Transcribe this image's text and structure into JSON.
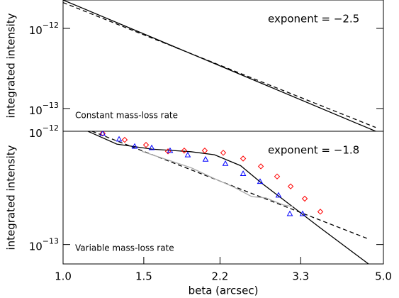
{
  "chart_data": [
    {
      "type": "line",
      "log_x": true,
      "log_y": true,
      "ylabel": "integrated intensity",
      "annotation": "exponent = −2.5",
      "note": "Constant mass-loss rate",
      "xlim": [
        1.0,
        5.0
      ],
      "ylim": [
        5.2e-14,
        2.26e-12
      ],
      "yticks": [
        {
          "value": 1e-12,
          "label": "10−12"
        },
        {
          "value": 1e-13,
          "label": "10−13"
        }
      ],
      "series": [
        {
          "color": "#000000",
          "style": "solid",
          "x": [
            1.0,
            4.81
          ],
          "values": [
            2.26e-12,
            5.2e-14
          ]
        },
        {
          "color": "#000000",
          "style": "dashed",
          "x": [
            1.0,
            4.81
          ],
          "values": [
            2.1e-12,
            5.8e-14
          ]
        }
      ]
    },
    {
      "type": "line",
      "log_x": true,
      "log_y": true,
      "ylabel": "integrated intensity",
      "xlabel": "beta (arcsec)",
      "annotation": "exponent = −1.8",
      "note": "Variable mass-loss rate",
      "xlim": [
        1.0,
        5.0
      ],
      "ylim": [
        6.74e-14,
        1e-12
      ],
      "xticks": [
        {
          "value": 1.0,
          "label": "1.0"
        },
        1.5,
        2.2,
        3.3,
        {
          "value": 5.0,
          "label": "5.0"
        }
      ],
      "yticks": [
        {
          "value": 1e-12,
          "label": "10−12"
        },
        {
          "value": 1e-13,
          "label": "10−13"
        }
      ],
      "series": [
        {
          "color": "#000000",
          "style": "solid",
          "x": [
            1.133,
            1.31,
            1.566,
            1.9,
            2.14,
            2.44,
            2.72,
            3.14,
            3.61,
            4.64
          ],
          "values": [
            1e-12,
            7.7e-13,
            6.95e-13,
            6.6e-13,
            6.2e-13,
            4.97e-13,
            3.45e-13,
            2.22e-13,
            1.44e-13,
            6.74e-14
          ]
        },
        {
          "color": "#000000",
          "style": "dashed",
          "x": [
            1.157,
            4.64
          ],
          "values": [
            1e-12,
            1.12e-13
          ]
        },
        {
          "color": "#aaaaaa",
          "style": "solid",
          "x": [
            1.485,
            1.712,
            1.906,
            2.12,
            2.36,
            2.58,
            2.77,
            3.03,
            3.19
          ],
          "values": [
            6.65e-13,
            5.5e-13,
            4.75e-13,
            3.88e-13,
            3.21e-13,
            2.65e-13,
            2.58e-13,
            2.23e-13,
            2.16e-13
          ]
        },
        {
          "color": "#ff0000",
          "style": "none",
          "marker": "diamond",
          "x": [
            1.22,
            1.363,
            1.517,
            1.694,
            1.838,
            2.038,
            2.236,
            2.471,
            2.701,
            2.931,
            3.137,
            3.368,
            3.642
          ],
          "values": [
            9.57e-13,
            8.4e-13,
            7.58e-13,
            6.65e-13,
            6.75e-13,
            6.75e-13,
            6.46e-13,
            5.74e-13,
            4.9e-13,
            3.99e-13,
            3.26e-13,
            2.54e-13,
            1.95e-13
          ]
        },
        {
          "color": "#0000ff",
          "style": "none",
          "marker": "triangle",
          "x": [
            1.22,
            1.325,
            1.433,
            1.561,
            1.712,
            1.871,
            2.046,
            2.26,
            2.471,
            2.691,
            2.952,
            3.125,
            3.332
          ],
          "values": [
            9.57e-13,
            8.52e-13,
            7.36e-13,
            7.15e-13,
            6.75e-13,
            6.18e-13,
            5.66e-13,
            5.19e-13,
            4.23e-13,
            3.6e-13,
            2.73e-13,
            1.87e-13,
            1.87e-13
          ]
        }
      ]
    }
  ]
}
